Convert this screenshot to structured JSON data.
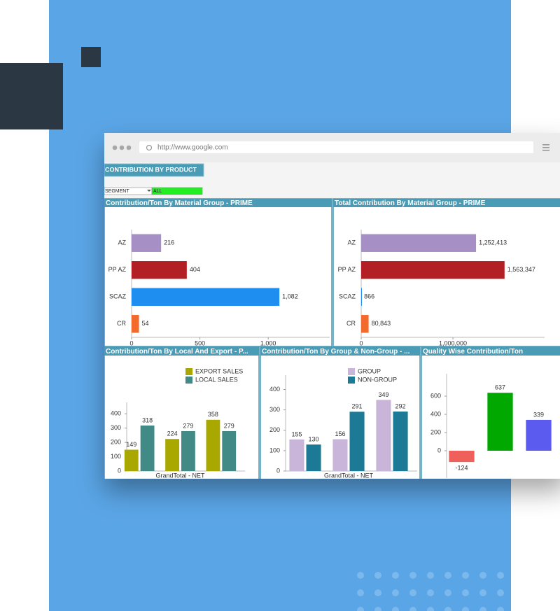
{
  "browser": {
    "url": "http://www.google.com"
  },
  "dashboard": {
    "title": "CONTRIBUTION BY PRODUCT",
    "filter_label": "SEGMENT",
    "filter_value": "ALL"
  },
  "chart_data": [
    {
      "type": "bar",
      "orientation": "horizontal",
      "title": "Contribution/Ton By Material Group - PRIME",
      "categories": [
        "AZ",
        "PP AZ",
        "SCAZ",
        "CR"
      ],
      "values": [
        216,
        404,
        1082,
        54
      ],
      "value_labels": [
        "216",
        "404",
        "1,082",
        "54"
      ],
      "colors": [
        "#a58fc4",
        "#b22025",
        "#1f8ef1",
        "#f26b2d"
      ],
      "xlim": [
        0,
        1450
      ],
      "xticks": [
        0,
        500,
        {
          "value": 1000,
          "label": "1,000"
        }
      ]
    },
    {
      "type": "bar",
      "orientation": "horizontal",
      "title": "Total Contribution By Material Group - PRIME",
      "categories": [
        "AZ",
        "PP AZ",
        "SCAZ",
        "CR"
      ],
      "values": [
        1252413,
        1563347,
        866,
        80843
      ],
      "value_labels": [
        "1,252,413",
        "1,563,347",
        "866",
        "80,843"
      ],
      "colors": [
        "#a58fc4",
        "#b22025",
        "#1f8ef1",
        "#f26b2d"
      ],
      "xlim": [
        0,
        2000000
      ],
      "xticks": [
        0,
        {
          "value": 1000000,
          "label": "1,000,000"
        }
      ]
    },
    {
      "type": "bar",
      "title": "Contribution/Ton By Local And Export - P...",
      "x_label": "GrandTotal - NET",
      "categories": [
        null,
        null,
        null
      ],
      "series": [
        {
          "name": "EXPORT SALES",
          "color": "#a8a800",
          "values": [
            149,
            224,
            358
          ]
        },
        {
          "name": "LOCAL SALES",
          "color": "#428a86",
          "values": [
            318,
            279,
            279
          ]
        }
      ],
      "ylim": [
        0,
        450
      ],
      "yticks": [
        0,
        100,
        200,
        300,
        400
      ]
    },
    {
      "type": "bar",
      "title": "Contribution/Ton By Group & Non-Group - ...",
      "x_label": "GrandTotal - NET",
      "categories": [
        null,
        null,
        null
      ],
      "series": [
        {
          "name": "GROUP",
          "color": "#c9b5d9",
          "values": [
            155,
            156,
            349
          ]
        },
        {
          "name": "NON-GROUP",
          "color": "#1c7a96",
          "values": [
            130,
            291,
            292
          ]
        }
      ],
      "ylim": [
        0,
        450
      ],
      "yticks": [
        0,
        100,
        200,
        300,
        400
      ]
    },
    {
      "type": "bar",
      "title": "Quality Wise Contribution/Ton",
      "categories": [
        null,
        null,
        null
      ],
      "values": [
        -124,
        637,
        339
      ],
      "colors": [
        "#f0605a",
        "#00a800",
        "#5b5bef"
      ],
      "ylim": [
        -300,
        800
      ],
      "yticks": [
        0,
        200,
        400,
        600
      ]
    }
  ]
}
